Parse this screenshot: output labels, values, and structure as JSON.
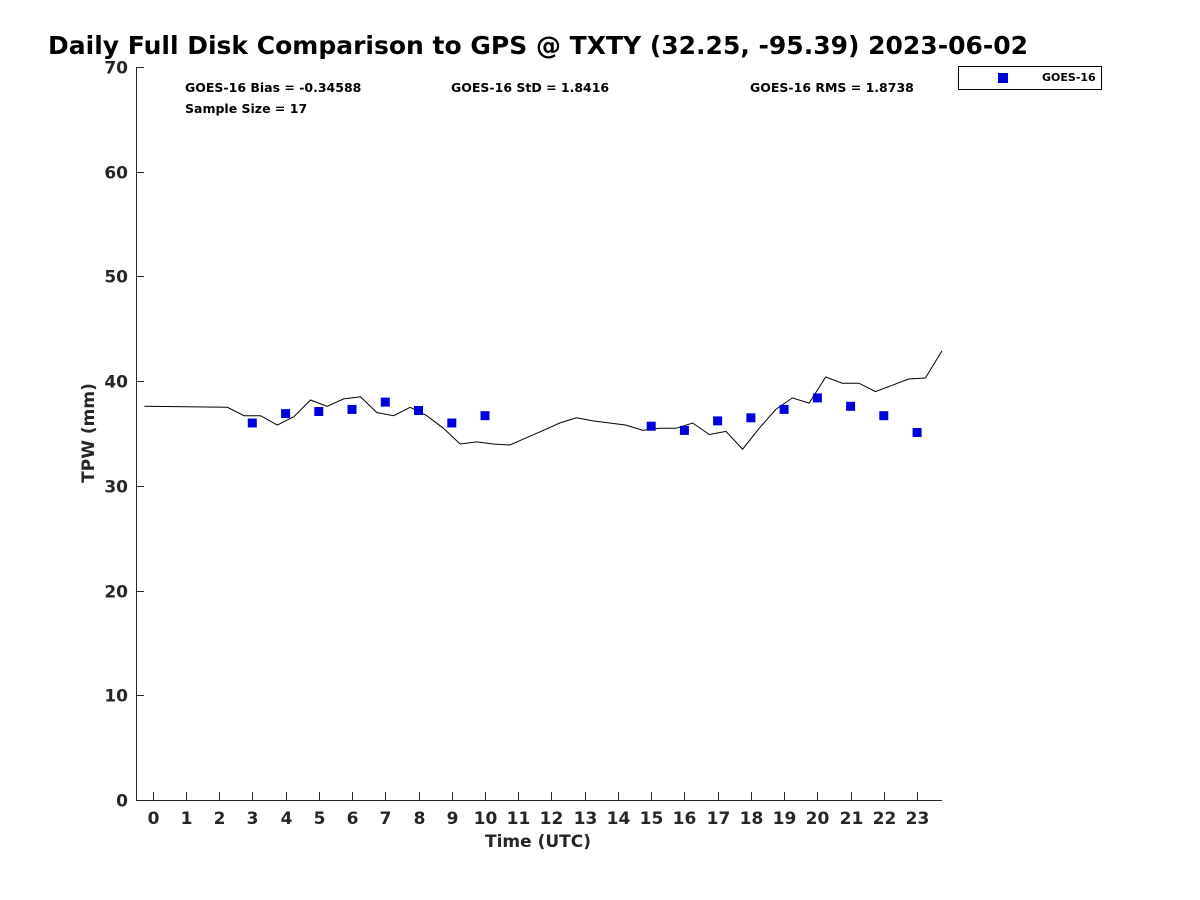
{
  "chart_data": {
    "type": "scatter",
    "title": "Daily Full Disk Comparison to GPS @ TXTY (32.25, -95.39) 2023-06-02",
    "xlabel": "Time (UTC)",
    "ylabel": "TPW (mm)",
    "xlim": [
      -0.5,
      23.75
    ],
    "ylim": [
      0,
      70
    ],
    "x_ticks": [
      0,
      1,
      2,
      3,
      4,
      5,
      6,
      7,
      8,
      9,
      10,
      11,
      12,
      13,
      14,
      15,
      16,
      17,
      18,
      19,
      20,
      21,
      22,
      23
    ],
    "x_tick_labels": [
      "0",
      "1",
      "2",
      "3",
      "4",
      "5",
      "6",
      "7",
      "8",
      "9",
      "10",
      "11",
      "12",
      "13",
      "14",
      "15",
      "16",
      "17",
      "18",
      "19",
      "20",
      "21",
      "22",
      "23"
    ],
    "y_ticks": [
      0,
      10,
      20,
      30,
      40,
      50,
      60,
      70
    ],
    "y_tick_labels": [
      "0",
      "10",
      "20",
      "30",
      "40",
      "50",
      "60",
      "70"
    ],
    "stats": {
      "bias": "GOES-16 Bias = -0.34588",
      "std": "GOES-16 StD = 1.8416",
      "rms": "GOES-16 RMS = 1.8738",
      "sample_size": "Sample Size = 17"
    },
    "legend_position": "top-right outside",
    "series": [
      {
        "name": "GOES-16",
        "kind": "scatter",
        "marker": "square",
        "color": "#0000dd",
        "x": [
          3,
          4,
          5,
          6,
          7,
          8,
          9,
          10,
          15,
          16,
          17,
          18,
          19,
          20,
          21,
          22,
          23
        ],
        "y": [
          36.0,
          36.9,
          37.1,
          37.3,
          38.0,
          37.2,
          36.0,
          36.7,
          35.7,
          35.3,
          36.2,
          36.5,
          37.3,
          38.4,
          37.6,
          36.7,
          35.1
        ]
      },
      {
        "name": "GPS",
        "kind": "line",
        "color": "#000000",
        "x": [
          -0.25,
          2.25,
          2.75,
          3.25,
          3.75,
          4.25,
          4.75,
          5.25,
          5.75,
          6.25,
          6.75,
          7.25,
          7.75,
          8.25,
          8.75,
          9.25,
          9.75,
          10.25,
          10.75,
          11.25,
          11.75,
          12.25,
          12.75,
          13.25,
          13.75,
          14.25,
          14.75,
          15.25,
          15.75,
          16.25,
          16.75,
          17.25,
          17.75,
          18.25,
          18.75,
          19.25,
          19.75,
          20.25,
          20.75,
          21.25,
          21.75,
          22.25,
          22.75,
          23.25,
          23.75
        ],
        "y": [
          37.6,
          37.5,
          36.7,
          36.7,
          35.8,
          36.6,
          38.2,
          37.6,
          38.3,
          38.5,
          37.0,
          36.7,
          37.5,
          36.7,
          35.5,
          34.0,
          34.2,
          34.0,
          33.9,
          34.6,
          35.3,
          36.0,
          36.5,
          36.2,
          36.0,
          35.8,
          35.3,
          35.5,
          35.5,
          36.0,
          34.9,
          35.2,
          33.5,
          35.5,
          37.3,
          38.4,
          37.9,
          40.4,
          39.8,
          39.8,
          39.0,
          39.6,
          40.2,
          40.3,
          42.9
        ]
      }
    ]
  }
}
